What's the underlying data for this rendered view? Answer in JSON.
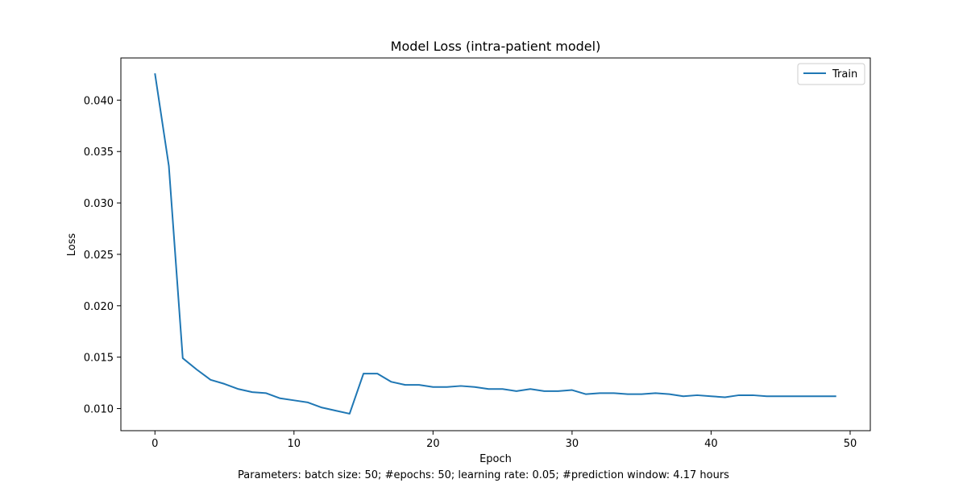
{
  "chart_data": {
    "type": "line",
    "title": "Model Loss (intra-patient model)",
    "xlabel": "Epoch",
    "ylabel": "Loss",
    "caption": "Parameters: batch size: 50; #epochs: 50; learning rate: 0.05; #prediction window: 4.17 hours",
    "xlim": [
      -2.45,
      51.45
    ],
    "ylim": [
      0.00785,
      0.0441
    ],
    "x_ticks": [
      0,
      10,
      20,
      30,
      40,
      50
    ],
    "x_tick_labels": [
      "0",
      "10",
      "20",
      "30",
      "40",
      "50"
    ],
    "y_ticks": [
      0.01,
      0.015,
      0.02,
      0.025,
      0.03,
      0.035,
      0.04
    ],
    "y_tick_labels": [
      "0.010",
      "0.015",
      "0.020",
      "0.025",
      "0.030",
      "0.035",
      "0.040"
    ],
    "grid": false,
    "legend_position": "top-right",
    "series": [
      {
        "name": "Train",
        "color": "#1f77b4",
        "x": [
          0,
          1,
          2,
          3,
          4,
          5,
          6,
          7,
          8,
          9,
          10,
          11,
          12,
          13,
          14,
          15,
          16,
          17,
          18,
          19,
          20,
          21,
          22,
          23,
          24,
          25,
          26,
          27,
          28,
          29,
          30,
          31,
          32,
          33,
          34,
          35,
          36,
          37,
          38,
          39,
          40,
          41,
          42,
          43,
          44,
          45,
          46,
          47,
          48,
          49
        ],
        "y": [
          0.0426,
          0.0336,
          0.0149,
          0.0138,
          0.0128,
          0.0124,
          0.0119,
          0.0116,
          0.0115,
          0.011,
          0.0108,
          0.0106,
          0.0101,
          0.0098,
          0.0095,
          0.0134,
          0.0134,
          0.0126,
          0.0123,
          0.0123,
          0.0121,
          0.0121,
          0.0122,
          0.0121,
          0.0119,
          0.0119,
          0.0117,
          0.0119,
          0.0117,
          0.0117,
          0.0118,
          0.0114,
          0.0115,
          0.0115,
          0.0114,
          0.0114,
          0.0115,
          0.0114,
          0.0112,
          0.0113,
          0.0112,
          0.0111,
          0.0113,
          0.0113,
          0.0112,
          0.0112,
          0.0112,
          0.0112,
          0.0112,
          0.0112
        ]
      }
    ]
  }
}
